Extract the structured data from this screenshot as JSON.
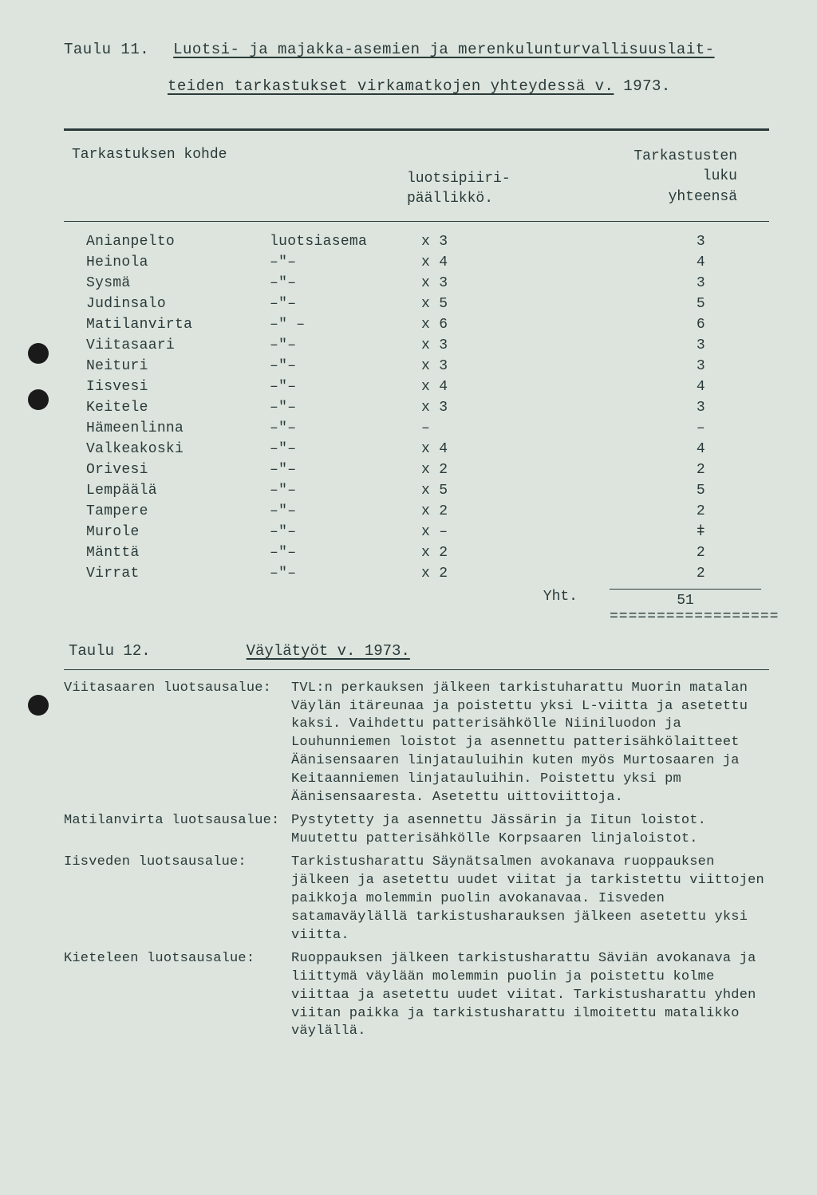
{
  "title": {
    "taulu_label": "Taulu  11.",
    "line1_underlined": "Luotsi- ja majakka-asemien ja merenkulunturvallisuuslait-",
    "line2_underlined": "teiden tarkastukset virkamatkojen yhteydessä v.",
    "line2_year": " 1973."
  },
  "table": {
    "headers": {
      "col1": "Tarkastuksen kohde",
      "col2": "",
      "col3": "luotsipiiri-\npäällikkö.",
      "col4": "Tarkastusten\nluku\nyhteensä"
    },
    "rows": [
      {
        "c1": "Anianpelto",
        "c2": "luotsiasema",
        "c3": "x 3",
        "c4": "3"
      },
      {
        "c1": "Heinola",
        "c2": "–\"–",
        "c3": "x 4",
        "c4": "4"
      },
      {
        "c1": "Sysmä",
        "c2": "–\"–",
        "c3": "x 3",
        "c4": "3"
      },
      {
        "c1": "Judinsalo",
        "c2": "–\"–",
        "c3": "x 5",
        "c4": "5"
      },
      {
        "c1": " Matilanvirta",
        "c2": "–\" –",
        "c3": "x 6",
        "c4": "6"
      },
      {
        "c1": "Viitasaari",
        "c2": "–\"–",
        "c3": "x 3",
        "c4": "3"
      },
      {
        "c1": "Neituri",
        "c2": "–\"–",
        "c3": "x 3",
        "c4": "3"
      },
      {
        "c1": "Iisvesi",
        "c2": "–\"–",
        "c3": "x 4",
        "c4": "4"
      },
      {
        "c1": "Keitele",
        "c2": "–\"–",
        "c3": "x 3",
        "c4": "3"
      },
      {
        "c1": "Hämeenlinna",
        "c2": "–\"–",
        "c3": "–",
        "c4": "–"
      },
      {
        "c1": "Valkeakoski",
        "c2": "–\"–",
        "c3": "x 4",
        "c4": "4"
      },
      {
        "c1": "Orivesi",
        "c2": "–\"–",
        "c3": "x 2",
        "c4": "2"
      },
      {
        "c1": "Lempäälä",
        "c2": "–\"–",
        "c3": "x 5",
        "c4": "5"
      },
      {
        "c1": "Tampere",
        "c2": "–\"–",
        "c3": "x 2",
        "c4": "2"
      },
      {
        "c1": "Murole",
        "c2": "–\"–",
        "c3": "x –",
        "c4": "ǂ"
      },
      {
        "c1": "Mänttä",
        "c2": "–\"–",
        "c3": "x 2",
        "c4": "2"
      },
      {
        "c1": "Virrat",
        "c2": "–\"–",
        "c3": "x 2",
        "c4": "2"
      }
    ],
    "total_label": "Yht.",
    "total_value": "51",
    "total_rule": "=================="
  },
  "taulu12": {
    "label": "Taulu  12.",
    "title": "Väylätyöt  v.  1973."
  },
  "descriptions": [
    {
      "label": "Viitasaaren luotsausalue:",
      "text": "TVL:n perkauksen jälkeen tarkistuharattu Muorin matalan Väylän itäreunaa ja poistettu yksi L-viitta ja asetettu kaksi. Vaihdettu patterisähkölle Niiniluodon ja Louhunniemen loistot ja asennettu patterisähkölaitteet Äänisensaaren linjatauluihin kuten myös Murtosaaren ja Keitaanniemen linjatauluihin. Poistettu yksi pm Äänisensaaresta. Asetettu uittoviittoja."
    },
    {
      "label": "Matilanvirta luotsausalue:",
      "text": "Pystytetty ja asennettu Jässärin ja Iitun loistot. Muutettu patterisähkölle Korpsaaren linjaloistot."
    },
    {
      "label": "Iisveden luotsausalue:",
      "text": "Tarkistusharattu Säynätsalmen avokanava ruoppauksen jälkeen ja asetettu uudet viitat ja tarkistettu viittojen paikkoja molemmin puolin avokanavaa. Iisveden satamaväylällä tarkistusharauksen jälkeen asetettu yksi viitta."
    },
    {
      "label": "Kieteleen luotsausalue:",
      "text": "Ruoppauksen jälkeen tarkistusharattu Säviän avokanava ja liittymä väylään molemmin puolin ja poistettu kolme viittaa ja asetettu uudet viitat. Tarkistusharattu yhden viitan paikka ja tarkistusharattu ilmoitettu matalikko väylällä."
    }
  ],
  "punch_holes": [
    430,
    488,
    871
  ],
  "colors": {
    "background": "#dce4dd",
    "text": "#2a3a3a",
    "punch": "#1a1a1a"
  }
}
